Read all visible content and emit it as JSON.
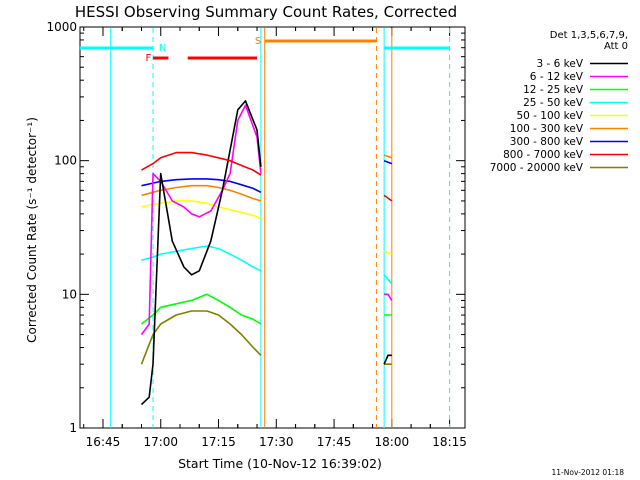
{
  "chart_data": {
    "type": "line",
    "title": "HESSI Observing Summary Count Rates, Corrected",
    "xlabel": "Start Time (10-Nov-12 16:39:02)",
    "ylabel": "Corrected Count Rate (s⁻¹ detector⁻¹)",
    "y_scale": "log",
    "ylim": [
      1,
      1000
    ],
    "xlim": [
      "16:39",
      "18:19"
    ],
    "x_ticks": [
      "16:45",
      "17:00",
      "17:15",
      "17:30",
      "17:45",
      "18:00",
      "18:15"
    ],
    "y_ticks": [
      "1",
      "10",
      "100",
      "1000"
    ],
    "footer": "11-Nov-2012 01:18",
    "legend": {
      "header": [
        "Det 1,3,5,6,7,9,",
        "Att 0"
      ],
      "position": "right"
    },
    "flags": [
      {
        "label": "N",
        "color": "#00ffff",
        "segments": [
          [
            "16:39",
            "16:58"
          ],
          [
            "17:58",
            "18:15"
          ]
        ]
      },
      {
        "label": "F",
        "color": "#ff0000",
        "segments": [
          [
            "16:58",
            "17:02"
          ],
          [
            "17:07",
            "17:25"
          ]
        ]
      },
      {
        "label": "S",
        "color": "#ff8000",
        "segments": [
          [
            "17:27",
            "17:56"
          ]
        ]
      }
    ],
    "vlines": [
      {
        "x": "16:47",
        "color": "#00ffff",
        "style": "solid"
      },
      {
        "x": "16:58",
        "color": "#00ffff",
        "style": "dashed"
      },
      {
        "x": "17:26",
        "color": "#00ffff",
        "style": "solid"
      },
      {
        "x": "17:27",
        "color": "#ff8000",
        "style": "solid"
      },
      {
        "x": "17:56",
        "color": "#ff8000",
        "style": "dashed"
      },
      {
        "x": "17:58",
        "color": "#00ffff",
        "style": "solid"
      },
      {
        "x": "18:00",
        "color": "#ff8000",
        "style": "solid"
      },
      {
        "x": "18:15",
        "color": "#00ffff",
        "style": "dashed"
      }
    ],
    "series": [
      {
        "name": "3 - 6 keV",
        "color": "#000000",
        "x": [
          "16:55",
          "16:57",
          "16:58",
          "17:00",
          "17:03",
          "17:06",
          "17:08",
          "17:10",
          "17:13",
          "17:16",
          "17:18",
          "17:20",
          "17:22",
          "17:24",
          "17:25",
          "17:26",
          "17:58",
          "17:59",
          "18:00"
        ],
        "y": [
          1.5,
          1.7,
          3,
          80,
          25,
          16,
          14,
          15,
          25,
          60,
          120,
          240,
          280,
          200,
          170,
          90,
          3,
          3.5,
          3.5
        ]
      },
      {
        "name": "6 - 12 keV",
        "color": "#ff00ff",
        "x": [
          "16:55",
          "16:57",
          "16:58",
          "17:00",
          "17:03",
          "17:06",
          "17:08",
          "17:10",
          "17:13",
          "17:16",
          "17:18",
          "17:20",
          "17:22",
          "17:24",
          "17:25",
          "17:26",
          "17:58",
          "17:59",
          "18:00"
        ],
        "y": [
          5,
          6,
          80,
          70,
          50,
          45,
          40,
          38,
          42,
          60,
          80,
          200,
          260,
          180,
          150,
          80,
          10,
          10,
          9
        ]
      },
      {
        "name": "12 - 25 keV",
        "color": "#00ff00",
        "x": [
          "16:55",
          "16:58",
          "17:00",
          "17:04",
          "17:08",
          "17:12",
          "17:15",
          "17:18",
          "17:21",
          "17:24",
          "17:26",
          "17:58",
          "18:00"
        ],
        "y": [
          6,
          7,
          8,
          8.5,
          9,
          10,
          9,
          8,
          7,
          6.5,
          6,
          7,
          7
        ]
      },
      {
        "name": "25 - 50 keV",
        "color": "#00ffff",
        "x": [
          "16:55",
          "16:58",
          "17:00",
          "17:04",
          "17:08",
          "17:12",
          "17:15",
          "17:18",
          "17:21",
          "17:24",
          "17:26",
          "17:58",
          "18:00"
        ],
        "y": [
          18,
          19,
          20,
          21,
          22,
          23,
          22,
          20,
          18,
          16,
          15,
          14,
          12
        ]
      },
      {
        "name": "50 - 100 keV",
        "color": "#ffff00",
        "x": [
          "16:55",
          "16:58",
          "17:00",
          "17:04",
          "17:08",
          "17:12",
          "17:15",
          "17:18",
          "17:21",
          "17:24",
          "17:26",
          "17:58",
          "18:00"
        ],
        "y": [
          45,
          47,
          48,
          50,
          50,
          48,
          45,
          43,
          41,
          39,
          37,
          21,
          20
        ]
      },
      {
        "name": "100 - 300 keV",
        "color": "#ff8000",
        "x": [
          "16:55",
          "16:58",
          "17:00",
          "17:04",
          "17:08",
          "17:12",
          "17:15",
          "17:18",
          "17:21",
          "17:24",
          "17:26",
          "17:58",
          "18:00"
        ],
        "y": [
          55,
          58,
          60,
          63,
          65,
          65,
          63,
          60,
          56,
          52,
          50,
          110,
          105
        ]
      },
      {
        "name": "300 - 800 keV",
        "color": "#0000ff",
        "x": [
          "16:55",
          "16:58",
          "17:00",
          "17:04",
          "17:08",
          "17:12",
          "17:15",
          "17:18",
          "17:21",
          "17:24",
          "17:26",
          "17:58",
          "18:00"
        ],
        "y": [
          65,
          68,
          70,
          72,
          73,
          73,
          72,
          70,
          66,
          62,
          58,
          100,
          95
        ]
      },
      {
        "name": "800 - 7000 keV",
        "color": "#ff0000",
        "x": [
          "16:55",
          "16:58",
          "17:00",
          "17:04",
          "17:08",
          "17:12",
          "17:15",
          "17:18",
          "17:21",
          "17:24",
          "17:26",
          "17:58",
          "18:00"
        ],
        "y": [
          85,
          95,
          105,
          115,
          115,
          110,
          105,
          100,
          92,
          85,
          78,
          55,
          50
        ]
      },
      {
        "name": "7000 - 20000 keV",
        "color": "#808000",
        "x": [
          "16:55",
          "16:58",
          "17:00",
          "17:04",
          "17:08",
          "17:12",
          "17:15",
          "17:18",
          "17:21",
          "17:24",
          "17:26",
          "17:58",
          "18:00"
        ],
        "y": [
          3,
          5,
          6,
          7,
          7.5,
          7.5,
          7,
          6,
          5,
          4,
          3.5,
          3,
          3
        ]
      }
    ]
  }
}
